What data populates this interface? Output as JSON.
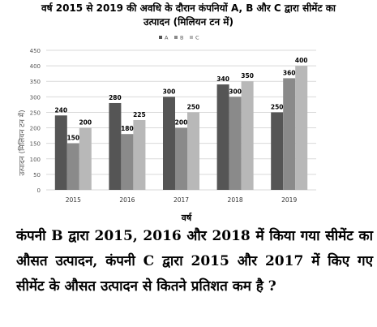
{
  "chart_data": {
    "type": "bar",
    "title_line1": "वर्ष 2015 से 2019 की अवधि के दौरान कंपनियों A, B और C द्वारा सीमेंट का",
    "title_line2": "उत्पादन (मिलियन टन में)",
    "xlabel": "वर्ष",
    "ylabel": "उत्पादन (मिलियन टन में)",
    "categories": [
      "2015",
      "2016",
      "2017",
      "2018",
      "2019"
    ],
    "series": [
      {
        "name": "A",
        "color": "#555555",
        "values": [
          240,
          280,
          300,
          340,
          250
        ]
      },
      {
        "name": "B",
        "color": "#8a8a8a",
        "values": [
          150,
          180,
          200,
          300,
          360
        ]
      },
      {
        "name": "C",
        "color": "#b8b8b8",
        "values": [
          200,
          225,
          250,
          350,
          400
        ]
      }
    ],
    "ylim": [
      0,
      450
    ],
    "yticks": [
      0,
      50,
      100,
      150,
      200,
      250,
      300,
      350,
      400,
      450
    ],
    "grid": "horizontal",
    "legend": "top"
  },
  "question": "कंपनी B द्वारा 2015, 2016 और 2018 में किया गया सीमेंट का औसत उत्पादन, कंपनी C द्वारा 2015 और 2017 में किए गए सीमेंट के औसत उत्पादन से कितने प्रतिशत कम है ?"
}
